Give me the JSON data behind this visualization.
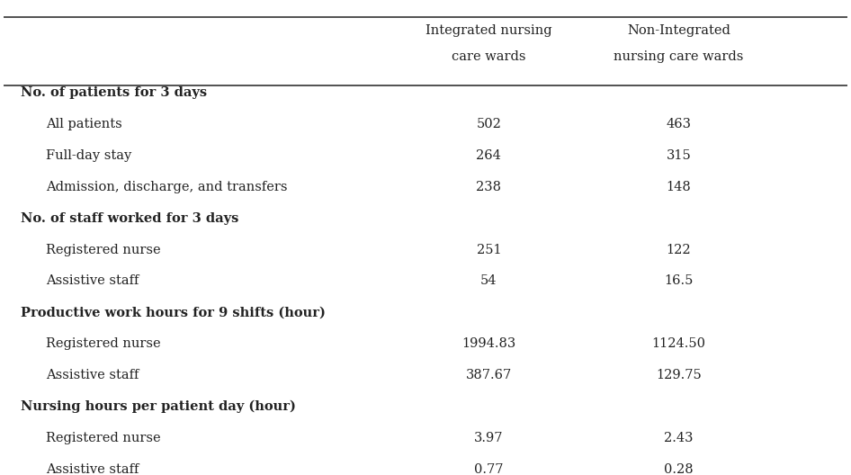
{
  "col_headers": [
    [
      "Integrated nursing",
      "care wards"
    ],
    [
      "Non-Integrated",
      "nursing care wards"
    ]
  ],
  "sections": [
    {
      "header": "No. of patients for 3 days",
      "rows": [
        {
          "label": "All patients",
          "col1": "502",
          "col2": "463"
        },
        {
          "label": "Full-day stay",
          "col1": "264",
          "col2": "315"
        },
        {
          "label": "Admission, discharge, and transfers",
          "col1": "238",
          "col2": "148"
        }
      ]
    },
    {
      "header": "No. of staff worked for 3 days",
      "rows": [
        {
          "label": "Registered nurse",
          "col1": "251",
          "col2": "122"
        },
        {
          "label": "Assistive staff",
          "col1": "54",
          "col2": "16.5"
        }
      ]
    },
    {
      "header": "Productive work hours for 9 shifts (hour)",
      "rows": [
        {
          "label": "Registered nurse",
          "col1": "1994.83",
          "col2": "1124.50"
        },
        {
          "label": "Assistive staff",
          "col1": "387.67",
          "col2": "129.75"
        }
      ]
    },
    {
      "header": "Nursing hours per patient day (hour)",
      "rows": [
        {
          "label": "Registered nurse",
          "col1": "3.97",
          "col2": "2.43"
        },
        {
          "label": "Assistive staff",
          "col1": "0.77",
          "col2": "0.28"
        }
      ]
    }
  ],
  "bg_color": "#ffffff",
  "text_color": "#222222",
  "line_color": "#333333",
  "header_fontsize": 10.5,
  "row_fontsize": 10.5,
  "col_header_fontsize": 10.5
}
